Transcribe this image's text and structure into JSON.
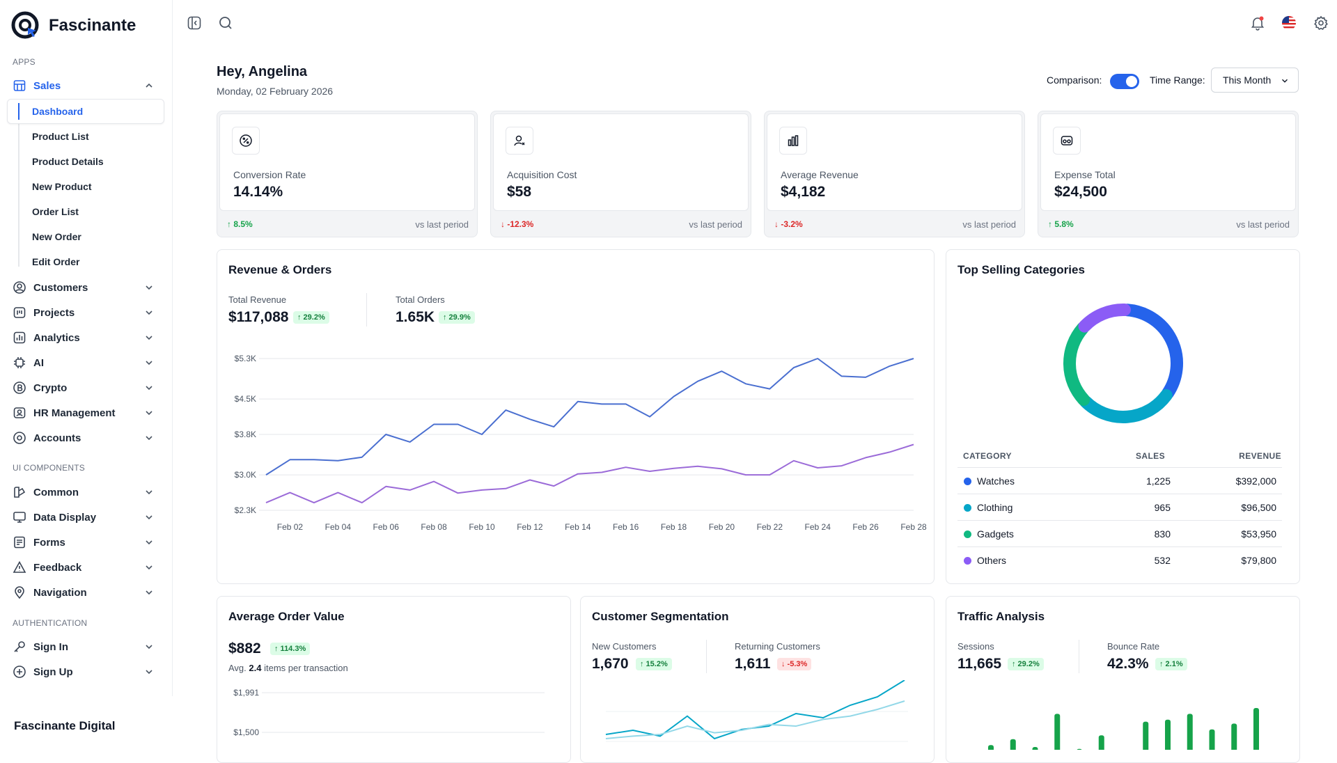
{
  "app": {
    "name": "Fascinante",
    "footer": "Fascinante Digital"
  },
  "sidebar": {
    "sections": [
      "APPS",
      "UI COMPONENTS",
      "AUTHENTICATION"
    ],
    "sales": {
      "label": "Sales",
      "sub": [
        "Dashboard",
        "Product List",
        "Product Details",
        "New Product",
        "Order List",
        "New Order",
        "Edit Order"
      ]
    },
    "apps": [
      "Customers",
      "Projects",
      "Analytics",
      "AI",
      "Crypto",
      "HR Management",
      "Accounts"
    ],
    "ui": [
      "Common",
      "Data Display",
      "Forms",
      "Feedback",
      "Navigation"
    ],
    "auth": [
      "Sign In",
      "Sign Up"
    ]
  },
  "header": {
    "greeting": "Hey, Angelina",
    "date": "Monday, 02 February 2026",
    "comparison_label": "Comparison:",
    "comparison_on": true,
    "time_range_label": "Time Range:",
    "time_range_value": "This Month"
  },
  "kpis": [
    {
      "icon": "percent-icon",
      "label": "Conversion Rate",
      "value": "14.14%",
      "change": "↑ 8.5%",
      "dir": "up",
      "vs": "vs last period"
    },
    {
      "icon": "user-icon",
      "label": "Acquisition Cost",
      "value": "$58",
      "change": "↓ -12.3%",
      "dir": "down",
      "vs": "vs last period"
    },
    {
      "icon": "bar-chart-icon",
      "label": "Average Revenue",
      "value": "$4,182",
      "change": "↓ -3.2%",
      "dir": "down",
      "vs": "vs last period"
    },
    {
      "icon": "wallet-icon",
      "label": "Expense Total",
      "value": "$24,500",
      "change": "↑ 5.8%",
      "dir": "up",
      "vs": "vs last period"
    }
  ],
  "revenue_orders": {
    "title": "Revenue & Orders",
    "total_revenue_label": "Total Revenue",
    "total_revenue": "$117,088",
    "total_revenue_change": "↑ 29.2%",
    "total_orders_label": "Total Orders",
    "total_orders": "1.65K",
    "total_orders_change": "↑ 29.9%"
  },
  "top_categories": {
    "title": "Top Selling Categories",
    "headers": [
      "CATEGORY",
      "SALES",
      "REVENUE"
    ],
    "rows": [
      {
        "name": "Watches",
        "sales": "1,225",
        "revenue": "$392,000",
        "color": "#2563eb"
      },
      {
        "name": "Clothing",
        "sales": "965",
        "revenue": "$96,500",
        "color": "#06a6c8"
      },
      {
        "name": "Gadgets",
        "sales": "830",
        "revenue": "$53,950",
        "color": "#10b981"
      },
      {
        "name": "Others",
        "sales": "532",
        "revenue": "$79,800",
        "color": "#8b5cf6"
      }
    ]
  },
  "aov": {
    "title": "Average Order Value",
    "value": "$882",
    "change": "↑ 114.3%",
    "note_prefix": "Avg.",
    "note_value": "2.4",
    "note_suffix": "items per transaction"
  },
  "segmentation": {
    "title": "Customer Segmentation",
    "new_label": "New Customers",
    "new_value": "1,670",
    "new_change": "↑ 15.2%",
    "ret_label": "Returning Customers",
    "ret_value": "1,611",
    "ret_change": "↓ -5.3%"
  },
  "traffic": {
    "title": "Traffic Analysis",
    "sessions_label": "Sessions",
    "sessions_value": "11,665",
    "sessions_change": "↑ 29.2%",
    "bounce_label": "Bounce Rate",
    "bounce_value": "42.3%",
    "bounce_change": "↑ 2.1%"
  },
  "chart_data": [
    {
      "type": "line",
      "x": [
        "Feb 01",
        "Feb 02",
        "Feb 03",
        "Feb 04",
        "Feb 05",
        "Feb 06",
        "Feb 07",
        "Feb 08",
        "Feb 09",
        "Feb 10",
        "Feb 11",
        "Feb 12",
        "Feb 13",
        "Feb 14",
        "Feb 15",
        "Feb 16",
        "Feb 17",
        "Feb 18",
        "Feb 19",
        "Feb 20",
        "Feb 21",
        "Feb 22",
        "Feb 23",
        "Feb 24",
        "Feb 25",
        "Feb 26",
        "Feb 27",
        "Feb 28"
      ],
      "tick_labels": [
        "Feb 02",
        "Feb 04",
        "Feb 06",
        "Feb 08",
        "Feb 10",
        "Feb 12",
        "Feb 14",
        "Feb 16",
        "Feb 18",
        "Feb 20",
        "Feb 22",
        "Feb 24",
        "Feb 26",
        "Feb 28"
      ],
      "y_ticks": [
        "$2.3K",
        "$3.0K",
        "$3.8K",
        "$4.5K",
        "$5.3K"
      ],
      "ylim": [
        2300,
        5300
      ],
      "grid": true,
      "colors": [
        "#4a6fd0",
        "#9b6bd8"
      ],
      "series": [
        {
          "values": [
            3000,
            3300,
            3300,
            3280,
            3350,
            3800,
            3650,
            4000,
            4000,
            3800,
            4280,
            4100,
            3950,
            4450,
            4400,
            4400,
            4150,
            4550,
            4850,
            5050,
            4800,
            4700,
            5120,
            5300,
            4950,
            4930,
            5150,
            5300
          ]
        },
        {
          "values": [
            2450,
            2650,
            2450,
            2650,
            2450,
            2770,
            2700,
            2870,
            2640,
            2700,
            2730,
            2900,
            2780,
            3020,
            3050,
            3150,
            3070,
            3130,
            3170,
            3120,
            3000,
            3000,
            3280,
            3140,
            3180,
            3340,
            3450,
            3600
          ]
        }
      ]
    },
    {
      "type": "pie",
      "categories": [
        "Watches",
        "Clothing",
        "Gadgets",
        "Others"
      ],
      "values": [
        34,
        28,
        24,
        14
      ],
      "colors": [
        "#2563eb",
        "#06a6c8",
        "#10b981",
        "#8b5cf6"
      ]
    },
    {
      "type": "line",
      "y_ticks": [
        "$1,500",
        "$1,991"
      ],
      "ylim": [
        1000,
        2100
      ],
      "grid": true,
      "colors": [
        "#16a34a"
      ],
      "series": []
    },
    {
      "type": "line",
      "colors": [
        "#06a6c8",
        "#93d8e8"
      ],
      "series": [
        {
          "values": [
            0.6,
            0.65,
            0.58,
            0.82,
            0.55,
            0.66,
            0.7,
            0.85,
            0.8,
            0.95,
            1.05,
            1.25
          ]
        },
        {
          "values": [
            0.55,
            0.58,
            0.6,
            0.7,
            0.62,
            0.65,
            0.72,
            0.7,
            0.78,
            0.82,
            0.9,
            1.0
          ]
        }
      ]
    },
    {
      "type": "bar",
      "values": [
        0.3,
        0.45,
        0.25,
        1.1,
        0.2,
        0.55,
        0.1,
        0.9,
        0.95,
        1.1,
        0.7,
        0.85,
        1.25
      ],
      "colors": [
        "#16a34a"
      ]
    }
  ]
}
